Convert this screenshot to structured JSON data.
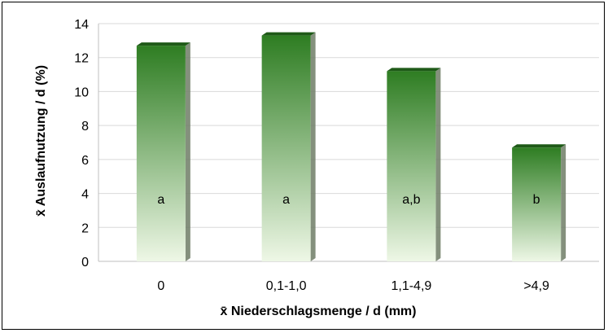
{
  "chart_data": {
    "type": "bar",
    "categories": [
      "0",
      "0,1-1,0",
      "1,1-4,9",
      ">4,9"
    ],
    "values": [
      12.7,
      13.3,
      11.2,
      6.7
    ],
    "bar_labels": [
      "a",
      "a",
      "a,b",
      "b"
    ],
    "xlabel": "x̄ Niederschlagsmenge / d (mm)",
    "ylabel": "x̄ Auslaufnutzung / d (%)",
    "ylim": [
      0,
      14
    ],
    "yticks": [
      0,
      2,
      4,
      6,
      8,
      10,
      12,
      14
    ],
    "grid": true,
    "legend": "none",
    "colors": {
      "bar_top": "#2e7d22",
      "bar_bottom": "#eef7e6",
      "bar_side": "#6f7d66",
      "bar_cap": "#1f5a18",
      "grid": "#d9d9d9",
      "axis": "#bfbfbf"
    }
  }
}
